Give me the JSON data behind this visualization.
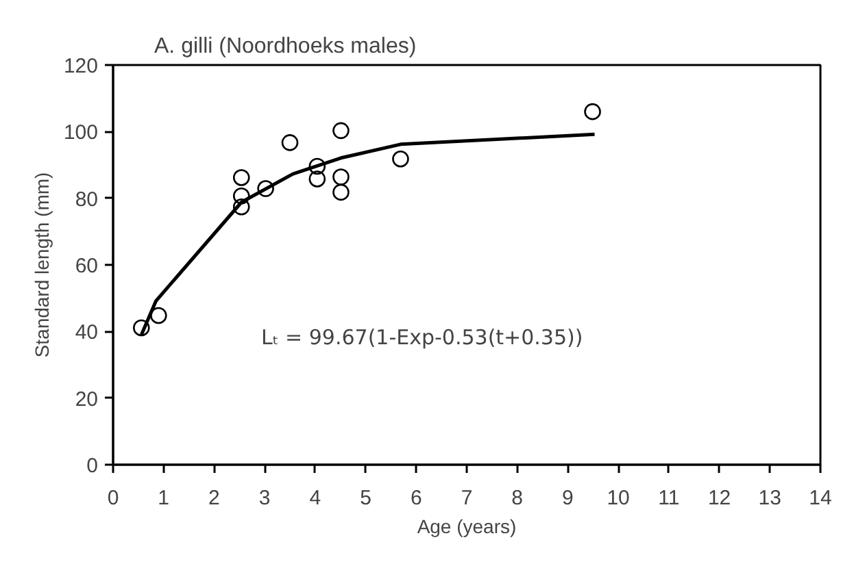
{
  "chart_data": {
    "type": "scatter",
    "title": "A. gilli (Noordhoeks males)",
    "xlabel": "Age (years)",
    "ylabel": "Standard length (mm)",
    "xlim": [
      0,
      14
    ],
    "xticks": [
      0,
      1,
      2,
      3,
      4,
      5,
      6,
      7,
      8,
      9,
      10,
      11,
      12,
      13,
      14
    ],
    "ylim": [
      0,
      120
    ],
    "yticks": [
      0,
      20,
      40,
      60,
      80,
      100,
      120
    ],
    "grid": false,
    "annotations": [
      "Lₜ = 99.67(1-Exp-0.53(t+0.35))"
    ],
    "series": [
      {
        "marker": "circle",
        "color": "#000000",
        "x": [
          0.56,
          0.9,
          2.54,
          2.54,
          2.54,
          3.02,
          3.5,
          4.04,
          4.04,
          4.51,
          4.51,
          4.51,
          5.69,
          9.49
        ],
        "values": [
          41.1,
          44.8,
          86.2,
          80.7,
          77.4,
          82.9,
          96.7,
          89.6,
          85.8,
          100.3,
          86.4,
          81.8,
          91.8,
          106
        ]
      },
      {
        "type": "line",
        "marker": "none",
        "line_style": "solid",
        "color": "#000000",
        "x": [
          0.56,
          0.85,
          2.54,
          3.56,
          4.51,
          5.69,
          9.53
        ],
        "values": [
          39,
          49.2,
          78.8,
          87.3,
          92.1,
          96.2,
          99.2
        ]
      }
    ]
  }
}
